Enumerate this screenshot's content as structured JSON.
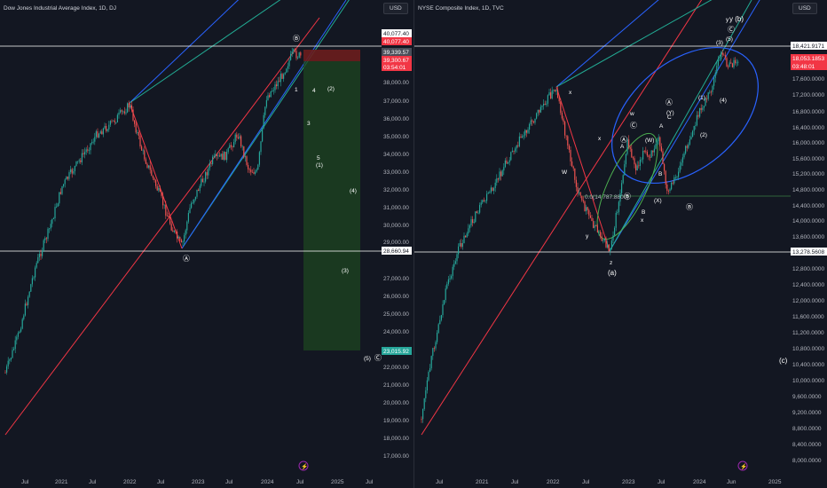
{
  "left": {
    "title": "Dow Jones Industrial Average Index, 1D, DJ",
    "currency": "USD",
    "price_ticks": [
      "38,000.00",
      "37,000.00",
      "36,000.00",
      "35,000.00",
      "34,000.00",
      "33,000.00",
      "32,000.00",
      "31,000.00",
      "30,000.00",
      "29,000.00",
      "27,000.00",
      "26,000.00",
      "25,000.00",
      "24,000.00",
      "22,000.00",
      "21,000.00",
      "20,000.00",
      "19,000.00",
      "18,000.00",
      "17,000.00"
    ],
    "time_ticks": [
      "Jul",
      "2021",
      "Jul",
      "2022",
      "Jul",
      "2023",
      "Jul",
      "2024",
      "Jul",
      "2025",
      "Jul"
    ],
    "tags": {
      "top_line": "40,077.40",
      "high": "40,077.40",
      "current": "39,339.57",
      "close": "39,300.67",
      "countdown": "03:54:01",
      "support": "28,660.94",
      "target": "23,015.92"
    },
    "wave_labels": {
      "B": "Ⓑ",
      "A": "Ⓐ",
      "w1": "1",
      "w4": "4",
      "w2": "(2)",
      "w3": "3",
      "w5": "5",
      "w1b": "(1)",
      "w4b": "(4)",
      "w3b": "(3)",
      "w5b": "(5)",
      "C": "Ⓒ"
    }
  },
  "right": {
    "title": "NYSE Composite Index, 1D, TVC",
    "currency": "USD",
    "price_ticks": [
      "18,000.0000",
      "17,600.0000",
      "17,200.0000",
      "16,800.0000",
      "16,400.0000",
      "16,000.0000",
      "15,600.0000",
      "15,200.0000",
      "14,800.0000",
      "14,400.0000",
      "14,000.0000",
      "13,600.0000",
      "12,800.0000",
      "12,400.0000",
      "12,000.0000",
      "11,600.0000",
      "11,200.0000",
      "10,800.0000",
      "10,400.0000",
      "10,000.0000",
      "9,600.0000",
      "9,200.0000",
      "8,800.0000",
      "8,400.0000",
      "8,000.0000"
    ],
    "time_ticks": [
      "Jul",
      "2021",
      "Jul",
      "2022",
      "Jul",
      "2023",
      "Jul",
      "2024",
      "Jun",
      "2025"
    ],
    "tags": {
      "top_line": "18,421.9171",
      "price": "18,053.1853",
      "countdown": "03:48:01",
      "support": "13,278.5608"
    },
    "fib_label": "0.0(14,787.8800)",
    "wave_labels": {
      "yb": "y (b)",
      "C": "Ⓒ",
      "w5": "(5)",
      "w3": "(3)",
      "w1": "(1)",
      "w4": "(4)",
      "w2": "(2)",
      "x1": "x",
      "W": "W",
      "C2": "Ⓒ",
      "A": "Ⓐ",
      "Y": "(Y)",
      "Cc": "C",
      "Wp": "(W)",
      "A2": "A",
      "Ac": "A",
      "B": "B",
      "X": "(X)",
      "Bb": "B",
      "x2": "x",
      "Bc": "Ⓑ",
      "w": "w",
      "y": "y",
      "x3": "x",
      "z": "z",
      "a": "(a)",
      "c": "(c)",
      "y2": "y",
      "A3": "Ⓐ",
      "B2": "Ⓑ"
    }
  },
  "colors": {
    "background": "#131722",
    "up": "#26a69a",
    "down": "#ef5350",
    "channel_red": "#f23645",
    "channel_green": "#22ab94",
    "channel_blue": "#2962ff",
    "ellipse": "#2962ff",
    "target_zone": "#1e4620",
    "stop_zone": "#6b1d1d"
  }
}
